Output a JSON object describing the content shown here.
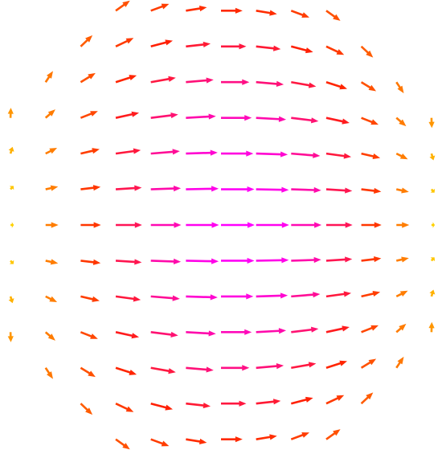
{
  "chart_data": {
    "type": "quiver",
    "xlim": [
      -6.3,
      6.3
    ],
    "ylim": [
      -6.3,
      6.3
    ],
    "colormap": [
      "#ffee00",
      "#ff8c00",
      "#ff2000",
      "#ff00ff"
    ],
    "x": [
      -3,
      -2,
      -1,
      0,
      1,
      2,
      3,
      -4,
      -3,
      -2,
      -1,
      0,
      1,
      2,
      3,
      4,
      -5,
      -4,
      -3,
      -2,
      -1,
      0,
      1,
      2,
      3,
      4,
      5,
      -6,
      -5,
      -4,
      -3,
      -2,
      -1,
      0,
      1,
      2,
      3,
      4,
      5,
      6,
      -6,
      -5,
      -4,
      -3,
      -2,
      -1,
      0,
      1,
      2,
      3,
      4,
      5,
      6,
      -6,
      -5,
      -4,
      -3,
      -2,
      -1,
      0,
      1,
      2,
      3,
      4,
      5,
      6,
      -6,
      -5,
      -4,
      -3,
      -2,
      -1,
      0,
      1,
      2,
      3,
      4,
      5,
      6,
      -6,
      -5,
      -4,
      -3,
      -2,
      -1,
      0,
      1,
      2,
      3,
      4,
      5,
      6,
      -6,
      -5,
      -4,
      -3,
      -2,
      -1,
      0,
      1,
      2,
      3,
      4,
      5,
      6,
      -6,
      -5,
      -4,
      -3,
      -2,
      -1,
      0,
      1,
      2,
      3,
      4,
      5,
      6,
      -5,
      -4,
      -3,
      -2,
      -1,
      0,
      1,
      2,
      3,
      4,
      5,
      -4,
      -3,
      -2,
      -1,
      0,
      1,
      2,
      3,
      4,
      -3,
      -2,
      -1,
      0,
      1,
      2,
      3
    ],
    "y": [
      6,
      6,
      6,
      6,
      6,
      6,
      6,
      5,
      5,
      5,
      5,
      5,
      5,
      5,
      5,
      5,
      4,
      4,
      4,
      4,
      4,
      4,
      4,
      4,
      4,
      4,
      4,
      3,
      3,
      3,
      3,
      3,
      3,
      3,
      3,
      3,
      3,
      3,
      3,
      3,
      2,
      2,
      2,
      2,
      2,
      2,
      2,
      2,
      2,
      2,
      2,
      2,
      2,
      1,
      1,
      1,
      1,
      1,
      1,
      1,
      1,
      1,
      1,
      1,
      1,
      1,
      0,
      0,
      0,
      0,
      0,
      0,
      0,
      0,
      0,
      0,
      0,
      0,
      0,
      -1,
      -1,
      -1,
      -1,
      -1,
      -1,
      -1,
      -1,
      -1,
      -1,
      -1,
      -1,
      -1,
      -2,
      -2,
      -2,
      -2,
      -2,
      -2,
      -2,
      -2,
      -2,
      -2,
      -2,
      -2,
      -2,
      -3,
      -3,
      -3,
      -3,
      -3,
      -3,
      -3,
      -3,
      -3,
      -3,
      -3,
      -3,
      -3,
      -4,
      -4,
      -4,
      -4,
      -4,
      -4,
      -4,
      -4,
      -4,
      -4,
      -4,
      -5,
      -5,
      -5,
      -5,
      -5,
      -5,
      -5,
      -5,
      -5,
      -6,
      -6,
      -6,
      -6,
      -6,
      -6,
      -6
    ],
    "u": [
      0.42,
      0.54,
      0.62,
      0.64,
      0.62,
      0.54,
      0.42,
      0.35,
      0.53,
      0.65,
      0.73,
      0.75,
      0.73,
      0.65,
      0.53,
      0.35,
      0.22,
      0.44,
      0.62,
      0.74,
      0.82,
      0.84,
      0.82,
      0.74,
      0.62,
      0.44,
      0.22,
      0.01,
      0.29,
      0.51,
      0.69,
      0.81,
      0.89,
      0.91,
      0.89,
      0.81,
      0.69,
      0.51,
      0.29,
      0.01,
      0.06,
      0.34,
      0.56,
      0.74,
      0.86,
      0.94,
      0.96,
      0.94,
      0.86,
      0.74,
      0.56,
      0.34,
      0.06,
      0.09,
      0.37,
      0.59,
      0.77,
      0.89,
      0.97,
      0.99,
      0.97,
      0.89,
      0.77,
      0.59,
      0.37,
      0.09,
      0.1,
      0.38,
      0.6,
      0.78,
      0.9,
      0.98,
      1,
      0.98,
      0.9,
      0.78,
      0.6,
      0.38,
      0.1,
      0.09,
      0.37,
      0.59,
      0.77,
      0.89,
      0.97,
      0.99,
      0.97,
      0.89,
      0.77,
      0.59,
      0.37,
      0.09,
      0.06,
      0.34,
      0.56,
      0.74,
      0.86,
      0.94,
      0.96,
      0.94,
      0.86,
      0.74,
      0.56,
      0.34,
      0.06,
      0.01,
      0.29,
      0.51,
      0.69,
      0.81,
      0.89,
      0.91,
      0.89,
      0.81,
      0.69,
      0.51,
      0.29,
      0.01,
      0.22,
      0.44,
      0.62,
      0.74,
      0.82,
      0.84,
      0.82,
      0.74,
      0.62,
      0.44,
      0.22,
      0.35,
      0.53,
      0.65,
      0.73,
      0.75,
      0.73,
      0.65,
      0.53,
      0.35,
      0.42,
      0.54,
      0.62,
      0.64,
      0.62,
      0.54,
      0.42
    ],
    "v": [
      0.3,
      0.2,
      0.1,
      0,
      -0.1,
      -0.2,
      -0.3,
      0.33,
      0.25,
      0.17,
      0.08,
      0,
      -0.08,
      -0.17,
      -0.25,
      -0.33,
      0.33,
      0.27,
      0.2,
      0.13,
      0.07,
      0,
      -0.07,
      -0.13,
      -0.2,
      -0.27,
      -0.33,
      0.3,
      0.25,
      0.2,
      0.15,
      0.1,
      0.05,
      0,
      -0.05,
      -0.1,
      -0.15,
      -0.2,
      -0.25,
      -0.3,
      0.2,
      0.17,
      0.13,
      0.1,
      0.07,
      0.03,
      0,
      -0.03,
      -0.07,
      -0.1,
      -0.13,
      -0.17,
      -0.2,
      0.1,
      0.08,
      0.07,
      0.05,
      0.03,
      0.02,
      0,
      -0.02,
      -0.03,
      -0.05,
      -0.07,
      -0.08,
      -0.1,
      0,
      0,
      0,
      0,
      0,
      0,
      0,
      0,
      0,
      0,
      0,
      0,
      0,
      -0.1,
      -0.08,
      -0.07,
      -0.05,
      -0.03,
      -0.02,
      0,
      0.02,
      0.03,
      0.05,
      0.07,
      0.08,
      0.1,
      -0.2,
      -0.17,
      -0.13,
      -0.1,
      -0.07,
      -0.03,
      0,
      0.03,
      0.07,
      0.1,
      0.13,
      0.17,
      0.2,
      -0.3,
      -0.25,
      -0.2,
      -0.15,
      -0.1,
      -0.05,
      0,
      0.05,
      0.1,
      0.15,
      0.2,
      0.25,
      0.3,
      -0.33,
      -0.27,
      -0.2,
      -0.13,
      -0.07,
      0,
      0.07,
      0.13,
      0.2,
      0.27,
      0.33,
      -0.33,
      -0.25,
      -0.17,
      -0.08,
      0,
      0.08,
      0.17,
      0.25,
      0.33,
      -0.3,
      -0.2,
      -0.1,
      0,
      0.1,
      0.2,
      0.3
    ]
  }
}
